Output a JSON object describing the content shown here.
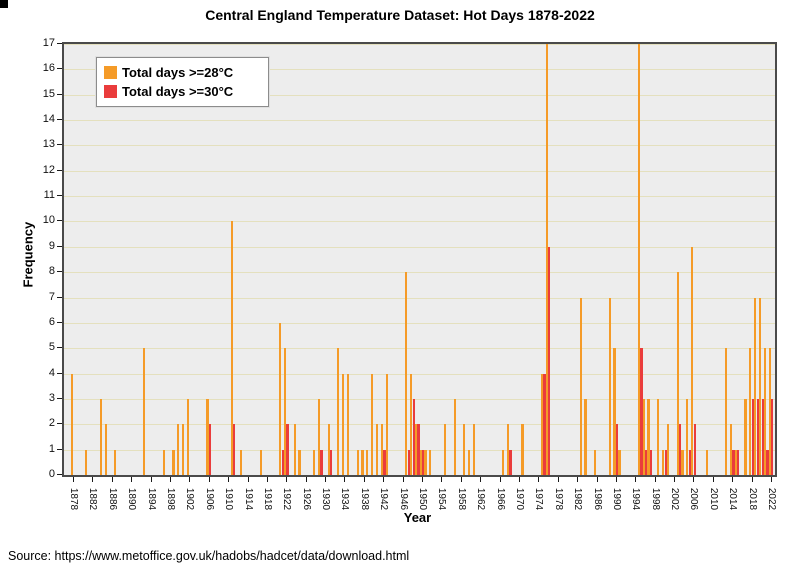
{
  "title": "Central England Temperature Dataset: Hot Days 1878-2022",
  "legend": {
    "items": [
      {
        "label": "Total days >=28°C",
        "color": "#F59B28"
      },
      {
        "label": "Total days >=30°C",
        "color": "#EA3C3C"
      }
    ]
  },
  "axes": {
    "x_label": "Year",
    "y_label": "Frequency"
  },
  "source": "Source: https://www.metoffice.gov.uk/hadobs/hadcet/data/download.html",
  "colors": {
    "bar_28c": "#F59B28",
    "bar_30c": "#EA3C3C",
    "plot_background": "#EDEDED",
    "gridline": "#E4E0BE",
    "frame": "#4a4a4a"
  },
  "chart_data": {
    "type": "bar",
    "title": "Central England Temperature Dataset: Hot Days 1878-2022",
    "xlabel": "Year",
    "ylabel": "Frequency",
    "ylim": [
      0,
      17
    ],
    "x_range": [
      1878,
      2022
    ],
    "grid": "horizontal",
    "legend_position": "top-left-inside",
    "y_ticks": [
      0,
      1,
      2,
      3,
      4,
      5,
      6,
      7,
      8,
      9,
      10,
      11,
      12,
      13,
      14,
      15,
      16,
      17
    ],
    "x_tick_years": [
      1878,
      1882,
      1886,
      1890,
      1894,
      1898,
      1902,
      1906,
      1910,
      1914,
      1918,
      1922,
      1926,
      1930,
      1934,
      1938,
      1942,
      1946,
      1950,
      1954,
      1958,
      1962,
      1966,
      1970,
      1974,
      1978,
      1982,
      1986,
      1990,
      1994,
      1998,
      2002,
      2006,
      2010,
      2014,
      2018,
      2022
    ],
    "series_names": [
      "Total days >=28°C",
      "Total days >=30°C"
    ],
    "points": [
      {
        "year": 1878,
        "ge28": 4,
        "ge30": 0
      },
      {
        "year": 1881,
        "ge28": 1,
        "ge30": 0
      },
      {
        "year": 1884,
        "ge28": 3,
        "ge30": 0
      },
      {
        "year": 1885,
        "ge28": 2,
        "ge30": 0
      },
      {
        "year": 1887,
        "ge28": 1,
        "ge30": 0
      },
      {
        "year": 1893,
        "ge28": 5,
        "ge30": 0
      },
      {
        "year": 1897,
        "ge28": 1,
        "ge30": 0
      },
      {
        "year": 1899,
        "ge28": 1,
        "ge30": 0
      },
      {
        "year": 1900,
        "ge28": 2,
        "ge30": 0
      },
      {
        "year": 1901,
        "ge28": 2,
        "ge30": 0
      },
      {
        "year": 1902,
        "ge28": 3,
        "ge30": 0
      },
      {
        "year": 1906,
        "ge28": 3,
        "ge30": 2
      },
      {
        "year": 1911,
        "ge28": 10,
        "ge30": 2
      },
      {
        "year": 1913,
        "ge28": 1,
        "ge30": 0
      },
      {
        "year": 1917,
        "ge28": 1,
        "ge30": 0
      },
      {
        "year": 1921,
        "ge28": 6,
        "ge30": 1
      },
      {
        "year": 1922,
        "ge28": 5,
        "ge30": 2
      },
      {
        "year": 1924,
        "ge28": 2,
        "ge30": 0
      },
      {
        "year": 1925,
        "ge28": 1,
        "ge30": 0
      },
      {
        "year": 1928,
        "ge28": 1,
        "ge30": 0
      },
      {
        "year": 1929,
        "ge28": 3,
        "ge30": 1
      },
      {
        "year": 1931,
        "ge28": 2,
        "ge30": 1
      },
      {
        "year": 1933,
        "ge28": 5,
        "ge30": 0
      },
      {
        "year": 1934,
        "ge28": 4,
        "ge30": 0
      },
      {
        "year": 1935,
        "ge28": 4,
        "ge30": 0
      },
      {
        "year": 1937,
        "ge28": 1,
        "ge30": 0
      },
      {
        "year": 1938,
        "ge28": 1,
        "ge30": 0
      },
      {
        "year": 1939,
        "ge28": 1,
        "ge30": 0
      },
      {
        "year": 1940,
        "ge28": 4,
        "ge30": 0
      },
      {
        "year": 1941,
        "ge28": 2,
        "ge30": 0
      },
      {
        "year": 1942,
        "ge28": 2,
        "ge30": 1
      },
      {
        "year": 1943,
        "ge28": 4,
        "ge30": 0
      },
      {
        "year": 1947,
        "ge28": 8,
        "ge30": 1
      },
      {
        "year": 1948,
        "ge28": 4,
        "ge30": 3
      },
      {
        "year": 1949,
        "ge28": 2,
        "ge30": 2
      },
      {
        "year": 1950,
        "ge28": 1,
        "ge30": 1
      },
      {
        "year": 1951,
        "ge28": 1,
        "ge30": 0
      },
      {
        "year": 1952,
        "ge28": 1,
        "ge30": 0
      },
      {
        "year": 1955,
        "ge28": 2,
        "ge30": 0
      },
      {
        "year": 1957,
        "ge28": 3,
        "ge30": 0
      },
      {
        "year": 1959,
        "ge28": 2,
        "ge30": 0
      },
      {
        "year": 1960,
        "ge28": 1,
        "ge30": 0
      },
      {
        "year": 1961,
        "ge28": 2,
        "ge30": 0
      },
      {
        "year": 1967,
        "ge28": 1,
        "ge30": 0
      },
      {
        "year": 1968,
        "ge28": 2,
        "ge30": 1
      },
      {
        "year": 1971,
        "ge28": 2,
        "ge30": 0
      },
      {
        "year": 1975,
        "ge28": 4,
        "ge30": 4
      },
      {
        "year": 1976,
        "ge28": 17,
        "ge30": 9
      },
      {
        "year": 1983,
        "ge28": 7,
        "ge30": 0
      },
      {
        "year": 1984,
        "ge28": 3,
        "ge30": 0
      },
      {
        "year": 1986,
        "ge28": 1,
        "ge30": 0
      },
      {
        "year": 1989,
        "ge28": 7,
        "ge30": 0
      },
      {
        "year": 1990,
        "ge28": 5,
        "ge30": 2
      },
      {
        "year": 1991,
        "ge28": 1,
        "ge30": 0
      },
      {
        "year": 1995,
        "ge28": 17,
        "ge30": 5
      },
      {
        "year": 1996,
        "ge28": 3,
        "ge30": 1
      },
      {
        "year": 1997,
        "ge28": 3,
        "ge30": 1
      },
      {
        "year": 1999,
        "ge28": 3,
        "ge30": 0
      },
      {
        "year": 2000,
        "ge28": 1,
        "ge30": 1
      },
      {
        "year": 2001,
        "ge28": 2,
        "ge30": 0
      },
      {
        "year": 2003,
        "ge28": 8,
        "ge30": 2
      },
      {
        "year": 2004,
        "ge28": 1,
        "ge30": 0
      },
      {
        "year": 2005,
        "ge28": 3,
        "ge30": 1
      },
      {
        "year": 2006,
        "ge28": 9,
        "ge30": 2
      },
      {
        "year": 2009,
        "ge28": 1,
        "ge30": 0
      },
      {
        "year": 2013,
        "ge28": 5,
        "ge30": 0
      },
      {
        "year": 2014,
        "ge28": 2,
        "ge30": 1
      },
      {
        "year": 2015,
        "ge28": 1,
        "ge30": 1
      },
      {
        "year": 2017,
        "ge28": 3,
        "ge30": 0
      },
      {
        "year": 2018,
        "ge28": 5,
        "ge30": 3
      },
      {
        "year": 2019,
        "ge28": 7,
        "ge30": 3
      },
      {
        "year": 2020,
        "ge28": 7,
        "ge30": 3
      },
      {
        "year": 2021,
        "ge28": 5,
        "ge30": 1
      },
      {
        "year": 2022,
        "ge28": 5,
        "ge30": 3
      }
    ]
  }
}
